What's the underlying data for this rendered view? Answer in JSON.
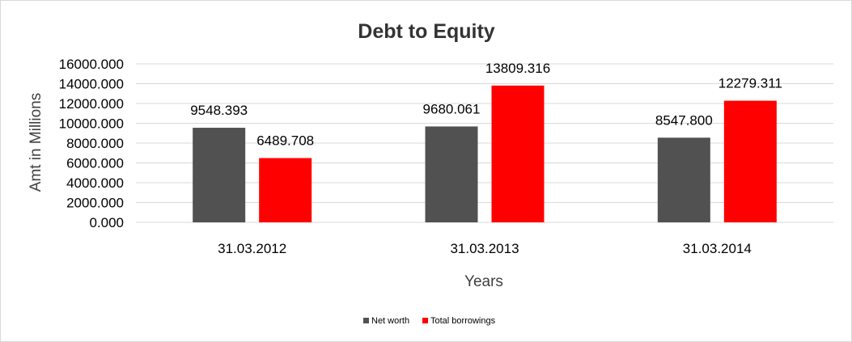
{
  "chart_data": {
    "type": "bar",
    "title": "Debt to Equity",
    "xlabel": "Years",
    "ylabel": "Amt in Millions",
    "categories": [
      "31.03.2012",
      "31.03.2013",
      "31.03.2014"
    ],
    "series": [
      {
        "name": "Net worth",
        "values": [
          9548.393,
          9680.061,
          8547.8
        ],
        "labels": [
          "9548.393",
          "9680.061",
          "8547.800"
        ],
        "color": "#515151"
      },
      {
        "name": "Total borrowings",
        "values": [
          6489.708,
          13809.316,
          12279.311
        ],
        "labels": [
          "6489.708",
          "13809.316",
          "12279.311"
        ],
        "color": "#ff0000"
      }
    ],
    "ylim": [
      0,
      16000
    ],
    "yticks": [
      0,
      2000,
      4000,
      6000,
      8000,
      10000,
      12000,
      14000,
      16000
    ],
    "ytick_labels": [
      "0.000",
      "2000.000",
      "4000.000",
      "6000.000",
      "8000.000",
      "10000.000",
      "12000.000",
      "14000.000",
      "16000.000"
    ],
    "grid": true,
    "legend_position": "bottom"
  }
}
